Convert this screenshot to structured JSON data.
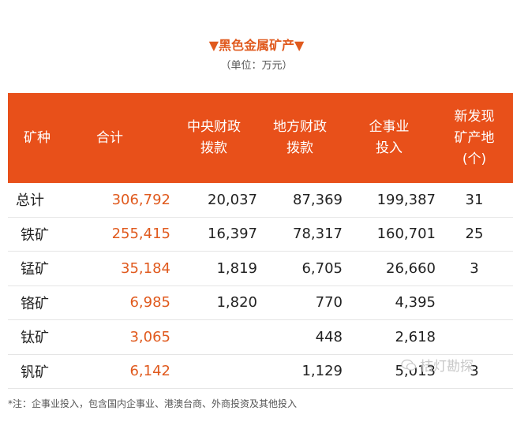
{
  "title": "▼黑色金属矿产▼",
  "subtitle": "（单位：万元）",
  "table": {
    "headers": [
      [
        "矿种"
      ],
      [
        "合计"
      ],
      [
        "中央财政",
        "拨款"
      ],
      [
        "地方财政",
        "拨款"
      ],
      [
        "企事业",
        "投入"
      ],
      [
        "新发现",
        "矿产地",
        "(个)"
      ]
    ],
    "rows": [
      {
        "name": "总计",
        "total": "306,792",
        "central": "20,037",
        "local": "87,369",
        "enterprise": "199,387",
        "new_sites": "31"
      },
      {
        "name": "铁矿",
        "total": "255,415",
        "central": "16,397",
        "local": "78,317",
        "enterprise": "160,701",
        "new_sites": "25"
      },
      {
        "name": "锰矿",
        "total": "35,184",
        "central": "1,819",
        "local": "6,705",
        "enterprise": "26,660",
        "new_sites": "3"
      },
      {
        "name": "铬矿",
        "total": "6,985",
        "central": "1,820",
        "local": "770",
        "enterprise": "4,395",
        "new_sites": ""
      },
      {
        "name": "钛矿",
        "total": "3,065",
        "central": "",
        "local": "448",
        "enterprise": "2,618",
        "new_sites": ""
      },
      {
        "name": "钒矿",
        "total": "6,142",
        "central": "",
        "local": "1,129",
        "enterprise": "5,013",
        "new_sites": "3"
      }
    ]
  },
  "watermark": "桔灯勘探",
  "note": "*注：企事业投入，包含国内企事业、港澳台商、外商投资及其他投入",
  "colors": {
    "header_bg": "#e8501a",
    "accent_text": "#e05a1e"
  }
}
